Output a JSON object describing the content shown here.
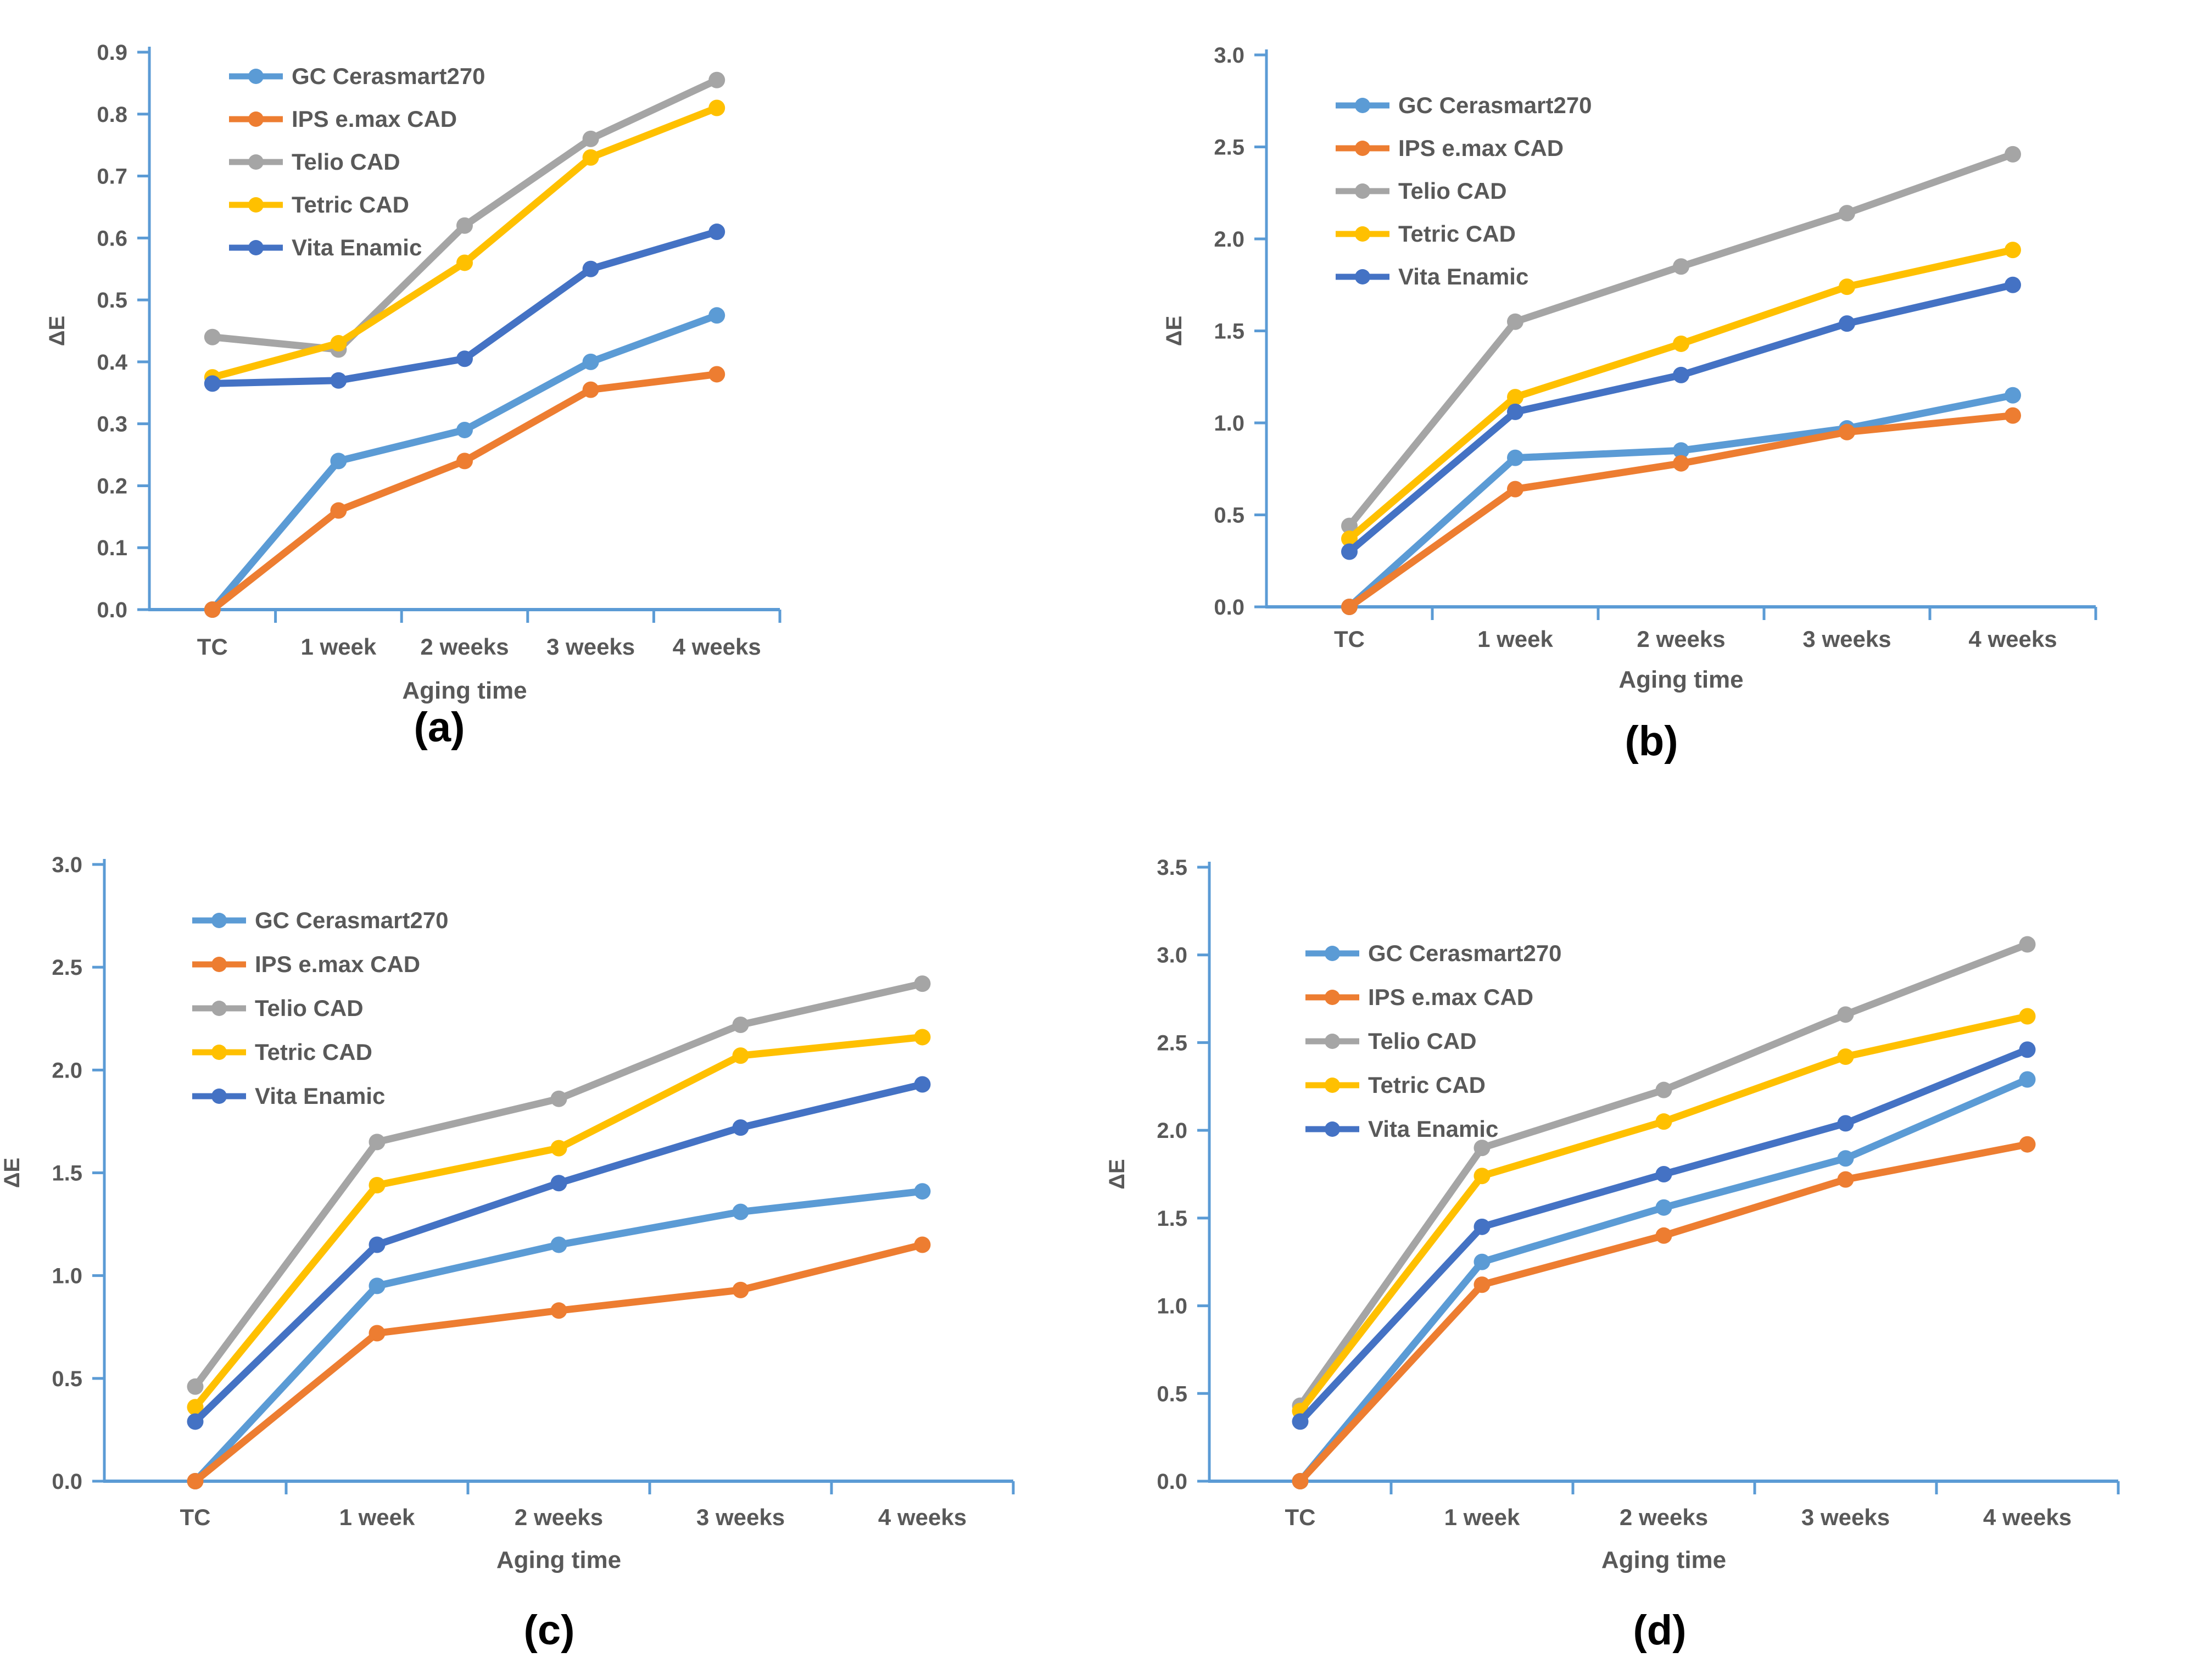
{
  "page": {
    "background_color": "#ffffff"
  },
  "shared": {
    "x_axis_label": "Aging time",
    "y_axis_label": "ΔE",
    "axis_color": "#5B9BD5",
    "text_color": "#595959",
    "caption_color": "#000000",
    "categories": [
      "TC",
      "1 week",
      "2 weeks",
      "3 weeks",
      "4 weeks"
    ],
    "legend_entries": [
      "GC Cerasmart270",
      "IPS e.max CAD",
      "Telio CAD",
      "Tetric CAD",
      "Vita Enamic"
    ]
  },
  "chart_data": [
    {
      "type": "line",
      "caption": "(a)",
      "title": "",
      "xlabel": "Aging time",
      "ylabel": "ΔE",
      "categories": [
        "TC",
        "1 week",
        "2 weeks",
        "3 weeks",
        "4 weeks"
      ],
      "ylim": [
        0.0,
        0.9
      ],
      "ytick_step": 0.1,
      "grid": false,
      "legend_position": "inside-top-left",
      "series": [
        {
          "name": "GC Cerasmart270",
          "color": "#5B9BD5",
          "values": [
            0.0,
            0.24,
            0.29,
            0.4,
            0.475
          ]
        },
        {
          "name": "IPS e.max CAD",
          "color": "#ED7D31",
          "values": [
            0.0,
            0.16,
            0.24,
            0.355,
            0.38
          ]
        },
        {
          "name": "Telio CAD",
          "color": "#A5A5A5",
          "values": [
            0.44,
            0.42,
            0.62,
            0.76,
            0.855
          ]
        },
        {
          "name": "Tetric CAD",
          "color": "#FFC000",
          "values": [
            0.375,
            0.43,
            0.56,
            0.73,
            0.81
          ]
        },
        {
          "name": "Vita Enamic",
          "color": "#4472C4",
          "values": [
            0.365,
            0.37,
            0.405,
            0.55,
            0.61
          ]
        }
      ]
    },
    {
      "type": "line",
      "caption": "(b)",
      "title": "",
      "xlabel": "Aging time",
      "ylabel": "ΔE",
      "categories": [
        "TC",
        "1 week",
        "2 weeks",
        "3 weeks",
        "4 weeks"
      ],
      "ylim": [
        0.0,
        3.0
      ],
      "ytick_step": 0.5,
      "grid": false,
      "legend_position": "inside-top-left",
      "series": [
        {
          "name": "GC Cerasmart270",
          "color": "#5B9BD5",
          "values": [
            0.0,
            0.81,
            0.85,
            0.97,
            1.15
          ]
        },
        {
          "name": "IPS e.max CAD",
          "color": "#ED7D31",
          "values": [
            0.0,
            0.64,
            0.78,
            0.95,
            1.04
          ]
        },
        {
          "name": "Telio CAD",
          "color": "#A5A5A5",
          "values": [
            0.44,
            1.55,
            1.85,
            2.14,
            2.46
          ]
        },
        {
          "name": "Tetric CAD",
          "color": "#FFC000",
          "values": [
            0.37,
            1.14,
            1.43,
            1.74,
            1.94
          ]
        },
        {
          "name": "Vita Enamic",
          "color": "#4472C4",
          "values": [
            0.3,
            1.06,
            1.26,
            1.54,
            1.75
          ]
        }
      ]
    },
    {
      "type": "line",
      "caption": "(c)",
      "title": "",
      "xlabel": "Aging time",
      "ylabel": "ΔE",
      "categories": [
        "TC",
        "1 week",
        "2 weeks",
        "3 weeks",
        "4 weeks"
      ],
      "ylim": [
        0.0,
        3.0
      ],
      "ytick_step": 0.5,
      "grid": false,
      "legend_position": "inside-top-left",
      "series": [
        {
          "name": "GC Cerasmart270",
          "color": "#5B9BD5",
          "values": [
            0.0,
            0.95,
            1.15,
            1.31,
            1.41
          ]
        },
        {
          "name": "IPS e.max CAD",
          "color": "#ED7D31",
          "values": [
            0.0,
            0.72,
            0.83,
            0.93,
            1.15
          ]
        },
        {
          "name": "Telio CAD",
          "color": "#A5A5A5",
          "values": [
            0.46,
            1.65,
            1.86,
            2.22,
            2.42
          ]
        },
        {
          "name": "Tetric CAD",
          "color": "#FFC000",
          "values": [
            0.36,
            1.44,
            1.62,
            2.07,
            2.16
          ]
        },
        {
          "name": "Vita Enamic",
          "color": "#4472C4",
          "values": [
            0.29,
            1.15,
            1.45,
            1.72,
            1.93
          ]
        }
      ]
    },
    {
      "type": "line",
      "caption": "(d)",
      "title": "",
      "xlabel": "Aging time",
      "ylabel": "ΔE",
      "categories": [
        "TC",
        "1 week",
        "2 weeks",
        "3 weeks",
        "4 weeks"
      ],
      "ylim": [
        0.0,
        3.5
      ],
      "ytick_step": 0.5,
      "grid": false,
      "legend_position": "inside-top-left",
      "series": [
        {
          "name": "GC Cerasmart270",
          "color": "#5B9BD5",
          "values": [
            0.0,
            1.25,
            1.56,
            1.84,
            2.29
          ]
        },
        {
          "name": "IPS e.max CAD",
          "color": "#ED7D31",
          "values": [
            0.0,
            1.12,
            1.4,
            1.72,
            1.92
          ]
        },
        {
          "name": "Telio CAD",
          "color": "#A5A5A5",
          "values": [
            0.43,
            1.9,
            2.23,
            2.66,
            3.06
          ]
        },
        {
          "name": "Tetric CAD",
          "color": "#FFC000",
          "values": [
            0.4,
            1.74,
            2.05,
            2.42,
            2.65
          ]
        },
        {
          "name": "Vita Enamic",
          "color": "#4472C4",
          "values": [
            0.34,
            1.45,
            1.75,
            2.04,
            2.46
          ]
        }
      ]
    }
  ]
}
